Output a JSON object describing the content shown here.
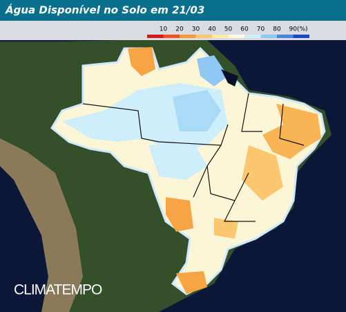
{
  "header": {
    "title": "Água Disponível no Solo em 21/03"
  },
  "legend": {
    "items": [
      {
        "label": "10",
        "color": "#d7191c"
      },
      {
        "label": "20",
        "color": "#f0531f"
      },
      {
        "label": "30",
        "color": "#f79a3b"
      },
      {
        "label": "40",
        "color": "#fcc76e"
      },
      {
        "label": "50",
        "color": "#fde9a6"
      },
      {
        "label": "60",
        "color": "#fffbe0"
      },
      {
        "label": "70",
        "color": "#cdeefa"
      },
      {
        "label": "80",
        "color": "#8fc8f2"
      },
      {
        "label": "90(%)",
        "color": "#4a86e0"
      }
    ],
    "end_color": "#1a46c8"
  },
  "watermark": "CLIMATEMPO"
}
